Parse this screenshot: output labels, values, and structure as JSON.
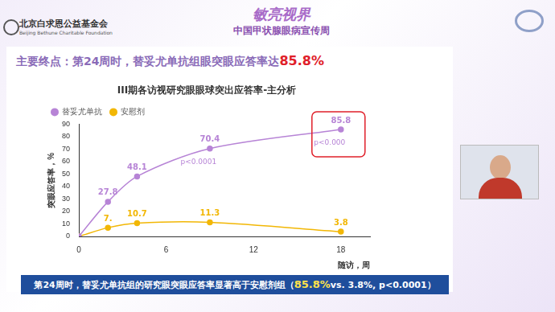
{
  "header": {
    "organization": "北京白求恩公益基金会",
    "organization_en": "Beijing Bethune Charitable Foundation",
    "brand": "敏亮视界",
    "campaign": "中国甲状腺眼病宣传周"
  },
  "heading": {
    "text": "主要终点：第24周时，替妥尤单抗组眼突眼应答率达",
    "highlight": "85.8%"
  },
  "caption": {
    "before": "第24周时，替妥尤单抗组的研究眼突眼应答率显著高于安慰剂组（",
    "highlight": "85.8%",
    "after": "vs. 3.8%, p<0.0001）"
  },
  "chart_data": {
    "type": "line",
    "title": "III期各访视研究眼眼球突出应答率-主分析",
    "x_label": "随访，周",
    "y_label": "突眼应答率，%",
    "x": [
      0,
      2,
      4,
      9,
      18
    ],
    "series": [
      {
        "name": "替妥尤单抗",
        "color": "#b784d6",
        "marker": "circle",
        "line_style": "solid",
        "values": [
          0,
          27.8,
          48.1,
          70.4,
          85.8
        ],
        "value_labels": [
          null,
          "27.8",
          "48.1",
          "70.4",
          "85.8"
        ]
      },
      {
        "name": "安慰剂",
        "color": "#f2b705",
        "marker": "circle",
        "line_style": "solid",
        "values": [
          0,
          7,
          10.7,
          11.3,
          3.8
        ],
        "value_labels": [
          null,
          "7.",
          "10.7",
          "11.3",
          "3.8"
        ]
      }
    ],
    "annotations": [
      {
        "text": "p<0.000",
        "series": 0,
        "point": 4
      },
      {
        "text": "p<0.0001",
        "series": 0,
        "point": 3
      }
    ],
    "xlim": [
      0,
      20
    ],
    "xticks": [
      0,
      6,
      12,
      18
    ],
    "ylim": [
      0,
      90
    ],
    "yticks": [
      0,
      10,
      20,
      30,
      40,
      50,
      60,
      70,
      80,
      90
    ],
    "grid": false,
    "legend": "top",
    "data_labels": true
  }
}
